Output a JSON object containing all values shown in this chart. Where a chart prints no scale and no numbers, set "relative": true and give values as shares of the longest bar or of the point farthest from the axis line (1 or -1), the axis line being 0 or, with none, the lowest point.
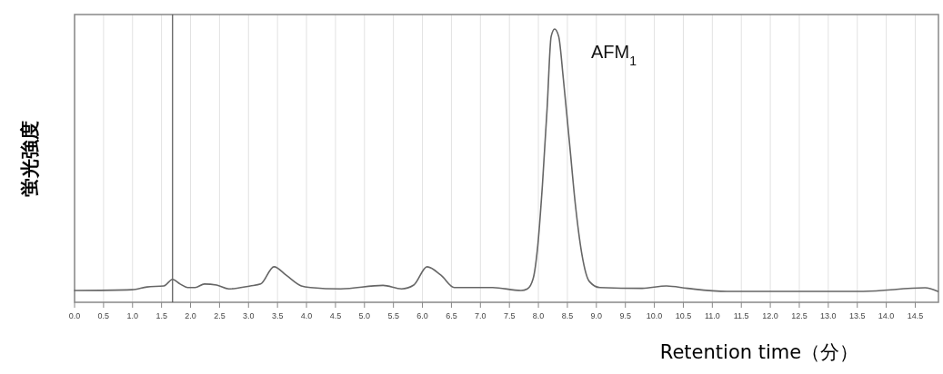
{
  "chart_data": {
    "type": "line",
    "relative": true,
    "xlabel": "Retention time（分）",
    "ylabel": "蛍光強度",
    "annotations": [
      {
        "text": "AFM$_{1}$",
        "x": 8.28,
        "y": 1.0
      }
    ],
    "xlim": [
      0,
      14.9
    ],
    "xticks": [
      {
        "value": 0,
        "label": "0.0"
      },
      {
        "value": 0.5,
        "label": "0.5"
      },
      {
        "value": 1,
        "label": "1.0"
      },
      {
        "value": 1.5,
        "label": "1.5"
      },
      {
        "value": 2,
        "label": "2.0"
      },
      {
        "value": 2.5,
        "label": "2.5"
      },
      {
        "value": 3,
        "label": "3.0"
      },
      {
        "value": 3.5,
        "label": "3.5"
      },
      {
        "value": 4,
        "label": "4.0"
      },
      {
        "value": 4.5,
        "label": "4.5"
      },
      {
        "value": 5,
        "label": "5.0"
      },
      {
        "value": 5.5,
        "label": "5.5"
      },
      {
        "value": 6,
        "label": "6.0"
      },
      {
        "value": 6.5,
        "label": "6.5"
      },
      {
        "value": 7,
        "label": "7.0"
      },
      {
        "value": 7.5,
        "label": "7.5"
      },
      {
        "value": 8,
        "label": "8.0"
      },
      {
        "value": 8.5,
        "label": "8.5"
      },
      {
        "value": 9,
        "label": "9.0"
      },
      {
        "value": 9.5,
        "label": "9.5"
      },
      {
        "value": 10,
        "label": "10.0"
      },
      {
        "value": 10.5,
        "label": "10.5"
      },
      {
        "value": 11,
        "label": "11.0"
      },
      {
        "value": 11.5,
        "label": "11.5"
      },
      {
        "value": 12,
        "label": "12.0"
      },
      {
        "value": 12.5,
        "label": "12.5"
      },
      {
        "value": 13,
        "label": "13.0"
      },
      {
        "value": 13.5,
        "label": "13.5"
      },
      {
        "value": 14,
        "label": "14.0"
      },
      {
        "value": 14.5,
        "label": "14.5"
      }
    ],
    "grid": "x",
    "ref_lines": [
      {
        "axis": "x",
        "value": 1.69,
        "color": "#555555"
      }
    ],
    "series": [
      {
        "color": "#666666",
        "x": [
          0,
          0.99,
          1.25,
          1.54,
          1.69,
          1.82,
          1.95,
          2.08,
          2.24,
          2.45,
          2.66,
          3.03,
          3.21,
          3.44,
          3.65,
          3.91,
          4.07,
          4.59,
          5.32,
          5.64,
          5.85,
          6.08,
          6.32,
          6.55,
          7.21,
          7.7,
          7.81,
          7.91,
          7.99,
          8.07,
          8.15,
          8.22,
          8.28,
          8.35,
          8.43,
          8.54,
          8.64,
          8.75,
          8.88,
          9.06,
          9.79,
          10.21,
          10.57,
          11.25,
          13.6,
          14.67,
          14.89
        ],
        "values": [
          0.043,
          0.046,
          0.056,
          0.06,
          0.084,
          0.067,
          0.054,
          0.054,
          0.067,
          0.063,
          0.049,
          0.06,
          0.067,
          0.13,
          0.099,
          0.06,
          0.054,
          0.049,
          0.062,
          0.049,
          0.063,
          0.13,
          0.099,
          0.054,
          0.054,
          0.043,
          0.049,
          0.087,
          0.209,
          0.431,
          0.708,
          0.973,
          1.0,
          0.973,
          0.818,
          0.575,
          0.353,
          0.176,
          0.076,
          0.054,
          0.051,
          0.06,
          0.051,
          0.04,
          0.04,
          0.053,
          0.04
        ]
      }
    ]
  }
}
